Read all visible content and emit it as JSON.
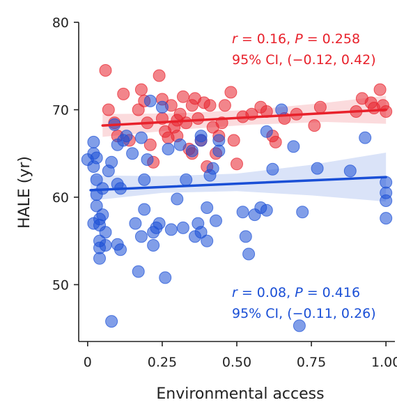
{
  "chart_data": {
    "type": "scatter",
    "title": "",
    "xlabel": "Environmental access",
    "ylabel": "HALE (yr)",
    "xlim": [
      -0.03,
      1.03
    ],
    "ylim": [
      43.5,
      80
    ],
    "xticks": [
      0,
      0.25,
      0.5,
      0.75,
      1.0
    ],
    "xtick_labels": [
      "0",
      "0.25",
      "0.50",
      "0.75",
      "1.00"
    ],
    "yticks": [
      50,
      60,
      70,
      80
    ],
    "ytick_labels": [
      "50",
      "60",
      "70",
      "80"
    ],
    "grid": false,
    "series": [
      {
        "color": "#e8212b",
        "fit": {
          "x": [
            0.05,
            1.0
          ],
          "y": [
            68.2,
            70.0
          ]
        },
        "ci_upper": {
          "x": [
            0.05,
            0.3,
            0.55,
            0.8,
            1.0
          ],
          "y": [
            69.5,
            69.6,
            70.0,
            70.8,
            71.6
          ]
        },
        "ci_lower": {
          "x": [
            0.05,
            0.3,
            0.55,
            0.8,
            1.0
          ],
          "y": [
            66.9,
            67.7,
            68.3,
            68.6,
            68.4
          ]
        },
        "points": [
          [
            0.06,
            74.5
          ],
          [
            0.1,
            67.0
          ],
          [
            0.12,
            71.8
          ],
          [
            0.14,
            66.5
          ],
          [
            0.17,
            70.0
          ],
          [
            0.18,
            72.3
          ],
          [
            0.19,
            71.0
          ],
          [
            0.2,
            68.5
          ],
          [
            0.21,
            66.0
          ],
          [
            0.22,
            64.0
          ],
          [
            0.24,
            73.9
          ],
          [
            0.25,
            71.2
          ],
          [
            0.25,
            69.0
          ],
          [
            0.26,
            67.5
          ],
          [
            0.27,
            66.8
          ],
          [
            0.28,
            70.5
          ],
          [
            0.29,
            68.0
          ],
          [
            0.3,
            67.0
          ],
          [
            0.31,
            69.5
          ],
          [
            0.32,
            71.5
          ],
          [
            0.33,
            68.5
          ],
          [
            0.34,
            65.5
          ],
          [
            0.35,
            70.5
          ],
          [
            0.36,
            71.3
          ],
          [
            0.37,
            69.0
          ],
          [
            0.38,
            66.5
          ],
          [
            0.39,
            70.8
          ],
          [
            0.4,
            63.5
          ],
          [
            0.41,
            70.5
          ],
          [
            0.42,
            68.0
          ],
          [
            0.43,
            65.0
          ],
          [
            0.44,
            67.0
          ],
          [
            0.46,
            70.5
          ],
          [
            0.48,
            72.0
          ],
          [
            0.49,
            66.5
          ],
          [
            0.5,
            63.8
          ],
          [
            0.52,
            69.2
          ],
          [
            0.55,
            69.5
          ],
          [
            0.58,
            70.3
          ],
          [
            0.6,
            69.8
          ],
          [
            0.62,
            67.0
          ],
          [
            0.63,
            66.3
          ],
          [
            0.66,
            69.0
          ],
          [
            0.7,
            69.5
          ],
          [
            0.76,
            68.2
          ],
          [
            0.78,
            70.3
          ],
          [
            0.9,
            69.8
          ],
          [
            0.92,
            71.3
          ],
          [
            0.95,
            70.8
          ],
          [
            0.96,
            70.2
          ],
          [
            0.98,
            72.3
          ],
          [
            0.99,
            70.5
          ],
          [
            1.0,
            69.8
          ],
          [
            0.07,
            70.0
          ],
          [
            0.09,
            68.5
          ],
          [
            0.35,
            65.0
          ],
          [
            0.45,
            68.5
          ],
          [
            0.3,
            68.8
          ]
        ]
      },
      {
        "color": "#1a4fd6",
        "fit": {
          "x": [
            0.01,
            1.0
          ],
          "y": [
            60.8,
            62.3
          ]
        },
        "ci_upper": {
          "x": [
            0.01,
            0.25,
            0.5,
            0.75,
            1.0
          ],
          "y": [
            62.5,
            62.4,
            62.7,
            63.7,
            65.1
          ]
        },
        "ci_lower": {
          "x": [
            0.01,
            0.25,
            0.5,
            0.75,
            1.0
          ],
          "y": [
            59.6,
            60.5,
            60.7,
            60.2,
            59.5
          ]
        },
        "points": [
          [
            0.0,
            64.3
          ],
          [
            0.02,
            66.3
          ],
          [
            0.02,
            65.0
          ],
          [
            0.02,
            63.5
          ],
          [
            0.03,
            62.0
          ],
          [
            0.03,
            60.3
          ],
          [
            0.03,
            59.0
          ],
          [
            0.04,
            57.5
          ],
          [
            0.04,
            56.8
          ],
          [
            0.04,
            55.0
          ],
          [
            0.04,
            54.2
          ],
          [
            0.04,
            53.0
          ],
          [
            0.05,
            61.0
          ],
          [
            0.05,
            58.0
          ],
          [
            0.06,
            56.0
          ],
          [
            0.06,
            54.5
          ],
          [
            0.07,
            63.0
          ],
          [
            0.08,
            64.0
          ],
          [
            0.08,
            45.8
          ],
          [
            0.09,
            68.3
          ],
          [
            0.1,
            66.0
          ],
          [
            0.1,
            61.5
          ],
          [
            0.1,
            54.6
          ],
          [
            0.11,
            61.0
          ],
          [
            0.11,
            54.0
          ],
          [
            0.12,
            66.5
          ],
          [
            0.13,
            67.0
          ],
          [
            0.15,
            65.0
          ],
          [
            0.16,
            57.0
          ],
          [
            0.17,
            51.5
          ],
          [
            0.18,
            66.8
          ],
          [
            0.18,
            55.5
          ],
          [
            0.19,
            58.6
          ],
          [
            0.19,
            62.0
          ],
          [
            0.2,
            64.3
          ],
          [
            0.21,
            71.0
          ],
          [
            0.22,
            54.5
          ],
          [
            0.22,
            56.0
          ],
          [
            0.23,
            56.5
          ],
          [
            0.24,
            57.0
          ],
          [
            0.25,
            70.3
          ],
          [
            0.26,
            50.8
          ],
          [
            0.27,
            65.5
          ],
          [
            0.28,
            56.3
          ],
          [
            0.3,
            59.8
          ],
          [
            0.31,
            66.0
          ],
          [
            0.32,
            56.5
          ],
          [
            0.33,
            62.0
          ],
          [
            0.35,
            65.3
          ],
          [
            0.36,
            55.5
          ],
          [
            0.37,
            57.0
          ],
          [
            0.38,
            66.5
          ],
          [
            0.38,
            56.0
          ],
          [
            0.4,
            58.8
          ],
          [
            0.4,
            55.0
          ],
          [
            0.41,
            62.5
          ],
          [
            0.42,
            63.3
          ],
          [
            0.43,
            57.3
          ],
          [
            0.44,
            65.3
          ],
          [
            0.52,
            58.3
          ],
          [
            0.53,
            55.5
          ],
          [
            0.54,
            53.5
          ],
          [
            0.56,
            58.0
          ],
          [
            0.58,
            58.8
          ],
          [
            0.6,
            67.5
          ],
          [
            0.62,
            63.2
          ],
          [
            0.65,
            70.0
          ],
          [
            0.69,
            65.8
          ],
          [
            0.71,
            45.3
          ],
          [
            0.72,
            58.3
          ],
          [
            0.77,
            63.3
          ],
          [
            0.88,
            63.0
          ],
          [
            0.93,
            66.8
          ],
          [
            1.0,
            61.7
          ],
          [
            1.0,
            60.5
          ],
          [
            1.0,
            59.6
          ],
          [
            1.0,
            57.6
          ],
          [
            0.38,
            67.0
          ],
          [
            0.44,
            66.5
          ],
          [
            0.6,
            58.5
          ],
          [
            0.03,
            64.5
          ],
          [
            0.02,
            57.0
          ]
        ]
      }
    ],
    "annotations": [
      {
        "parts": [
          {
            "t": "r",
            "italic": true
          },
          {
            "t": " = 0.16, "
          },
          {
            "t": "P",
            "italic": true
          },
          {
            "t": " = 0.258"
          }
        ],
        "color": "#e8212b"
      },
      {
        "parts": [
          {
            "t": "95% CI, (−0.12, 0.42)"
          }
        ],
        "color": "#e8212b"
      },
      {
        "parts": [
          {
            "t": "r",
            "italic": true
          },
          {
            "t": " = 0.08, "
          },
          {
            "t": "P",
            "italic": true
          },
          {
            "t": " = 0.416"
          }
        ],
        "color": "#1a4fd6"
      },
      {
        "parts": [
          {
            "t": "95% CI, (−0.11, 0.26)"
          }
        ],
        "color": "#1a4fd6"
      }
    ]
  }
}
